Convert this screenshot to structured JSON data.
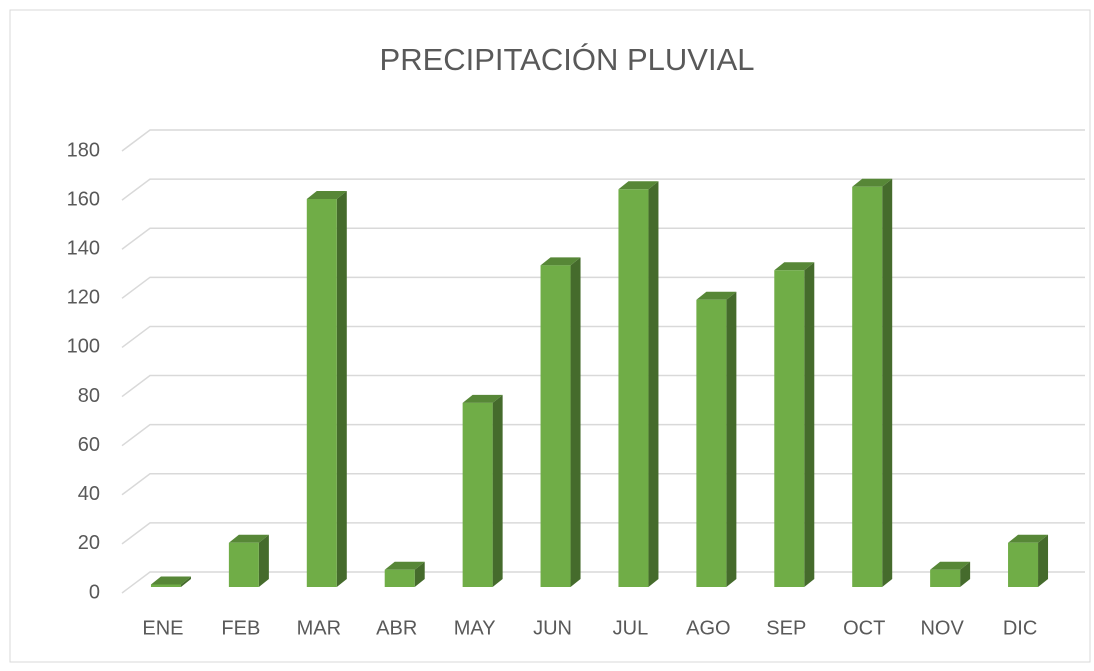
{
  "chart_data": {
    "type": "bar",
    "title": "PRECIPITACIÓN PLUVIAL",
    "categories": [
      "ENE",
      "FEB",
      "MAR",
      "ABR",
      "MAY",
      "JUN",
      "JUL",
      "AGO",
      "SEP",
      "OCT",
      "NOV",
      "DIC"
    ],
    "values": [
      1,
      18,
      158,
      7,
      75,
      131,
      162,
      117,
      129,
      163,
      7,
      18
    ],
    "color": "#70ad47",
    "ylim": [
      0,
      180
    ],
    "yticks": [
      0,
      20,
      40,
      60,
      80,
      100,
      120,
      140,
      160,
      180
    ],
    "grid": true
  }
}
